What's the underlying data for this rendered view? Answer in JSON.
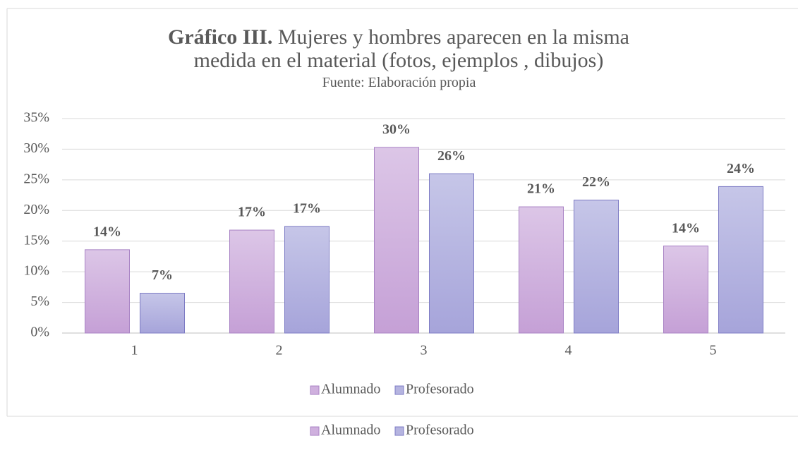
{
  "chart_data": {
    "type": "bar",
    "title_prefix": "Gráfico III.",
    "title": "Mujeres y hombres aparecen en la misma medida en el material (fotos, ejemplos , dibujos)",
    "subtitle": "Fuente: Elaboración propia",
    "categories": [
      "1",
      "2",
      "3",
      "4",
      "5"
    ],
    "series": [
      {
        "name": "Alumnado",
        "color": "#cfb0de",
        "values": [
          13.6,
          16.8,
          30.3,
          20.6,
          14.2
        ],
        "value_labels": [
          "14%",
          "17%",
          "30%",
          "21%",
          "14%"
        ]
      },
      {
        "name": "Profesorado",
        "color": "#b5b4e0",
        "values": [
          6.5,
          17.4,
          26.0,
          21.7,
          23.9
        ],
        "value_labels": [
          "7%",
          "17%",
          "26%",
          "22%",
          "24%"
        ]
      }
    ],
    "ylim": [
      0,
      35
    ],
    "yticks": [
      {
        "value": 0,
        "label": "0%"
      },
      {
        "value": 5,
        "label": "5%"
      },
      {
        "value": 10,
        "label": "10%"
      },
      {
        "value": 15,
        "label": "15%"
      },
      {
        "value": 20,
        "label": "20%"
      },
      {
        "value": 25,
        "label": "25%"
      },
      {
        "value": 30,
        "label": "30%"
      },
      {
        "value": 35,
        "label": "35%"
      }
    ],
    "grid": true,
    "legend": "bottom"
  }
}
